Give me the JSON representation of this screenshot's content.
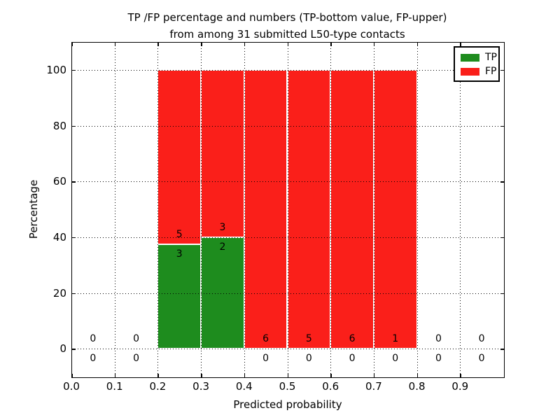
{
  "chart_data": {
    "type": "bar",
    "stacked": true,
    "title_line1": "TP /FP percentage and numbers (TP-bottom value, FP-upper)",
    "title_line2": "from among 31 submitted L50-type contacts",
    "xlabel": "Predicted probability",
    "ylabel": "Percentage",
    "xlim": [
      0.0,
      1.0
    ],
    "ylim": [
      -10,
      110
    ],
    "grid": true,
    "grid_style": "dotted",
    "legend_position": "upper right",
    "bin_width": 0.1,
    "xticks": [
      {
        "value": 0.0,
        "label": "0.0"
      },
      {
        "value": 0.1,
        "label": "0.1"
      },
      {
        "value": 0.2,
        "label": "0.2"
      },
      {
        "value": 0.3,
        "label": "0.3"
      },
      {
        "value": 0.4,
        "label": "0.4"
      },
      {
        "value": 0.5,
        "label": "0.5"
      },
      {
        "value": 0.6,
        "label": "0.6"
      },
      {
        "value": 0.7,
        "label": "0.7"
      },
      {
        "value": 0.8,
        "label": "0.8"
      },
      {
        "value": 0.9,
        "label": "0.9"
      }
    ],
    "yticks": [
      {
        "value": 0,
        "label": "0"
      },
      {
        "value": 20,
        "label": "20"
      },
      {
        "value": 40,
        "label": "40"
      },
      {
        "value": 60,
        "label": "60"
      },
      {
        "value": 80,
        "label": "80"
      },
      {
        "value": 100,
        "label": "100"
      }
    ],
    "bins": [
      {
        "x0": 0.0,
        "tp_count": 0,
        "fp_count": 0,
        "tp_pct": 0,
        "fp_pct": 0
      },
      {
        "x0": 0.1,
        "tp_count": 0,
        "fp_count": 0,
        "tp_pct": 0,
        "fp_pct": 0
      },
      {
        "x0": 0.2,
        "tp_count": 3,
        "fp_count": 5,
        "tp_pct": 37.5,
        "fp_pct": 62.5
      },
      {
        "x0": 0.3,
        "tp_count": 2,
        "fp_count": 3,
        "tp_pct": 40,
        "fp_pct": 60
      },
      {
        "x0": 0.4,
        "tp_count": 0,
        "fp_count": 6,
        "tp_pct": 0,
        "fp_pct": 100
      },
      {
        "x0": 0.5,
        "tp_count": 0,
        "fp_count": 5,
        "tp_pct": 0,
        "fp_pct": 100
      },
      {
        "x0": 0.6,
        "tp_count": 0,
        "fp_count": 6,
        "tp_pct": 0,
        "fp_pct": 100
      },
      {
        "x0": 0.7,
        "tp_count": 0,
        "fp_count": 1,
        "tp_pct": 0,
        "fp_pct": 100
      },
      {
        "x0": 0.8,
        "tp_count": 0,
        "fp_count": 0,
        "tp_pct": 0,
        "fp_pct": 0
      },
      {
        "x0": 0.9,
        "tp_count": 0,
        "fp_count": 0,
        "tp_pct": 0,
        "fp_pct": 0
      }
    ],
    "legend": [
      {
        "label": "TP",
        "color": "#1e8c1e"
      },
      {
        "label": "FP",
        "color": "#fa1f1a"
      }
    ],
    "colors": {
      "tp": "#1e8c1e",
      "fp": "#fa1f1a",
      "grid": "#000000",
      "frame": "#000000",
      "background": "#ffffff",
      "bar_edge": "#ffffff"
    }
  }
}
